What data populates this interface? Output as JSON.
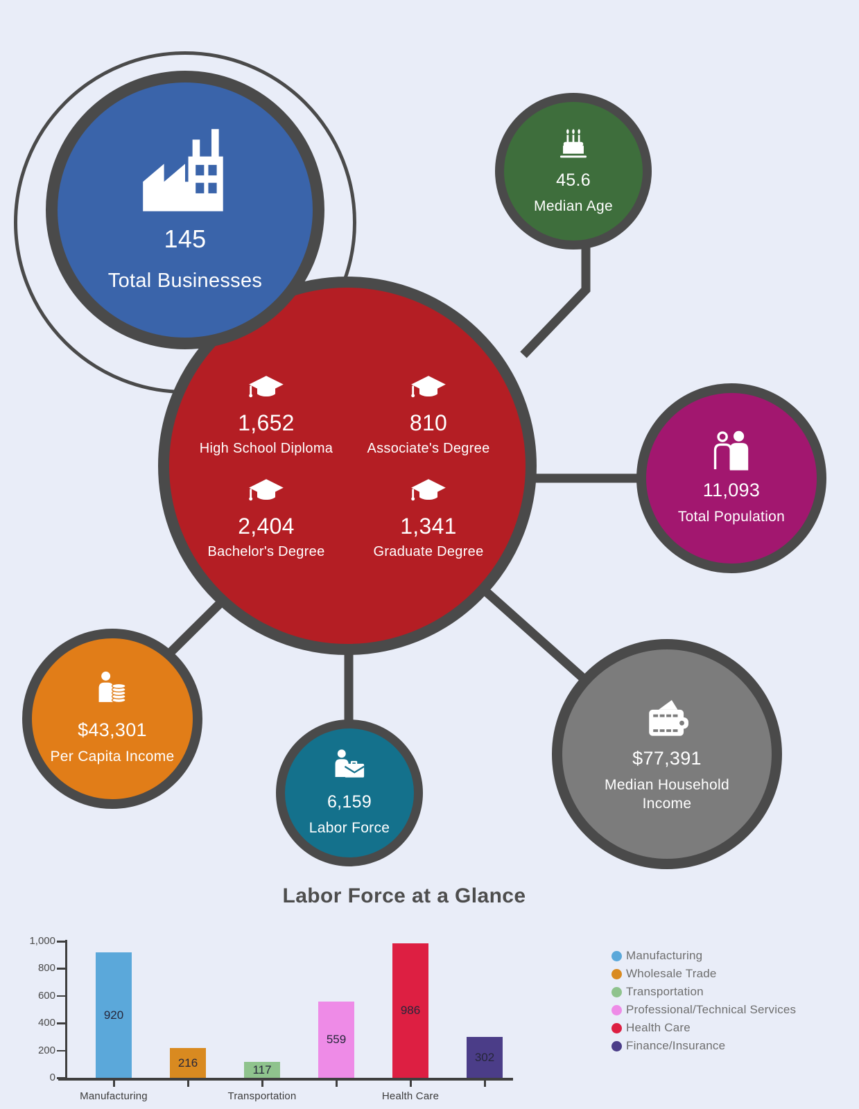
{
  "palette": {
    "background": "#e9edf8",
    "ring": "#4a4a4a",
    "white": "#ffffff"
  },
  "nodes": {
    "total_businesses": {
      "value": "145",
      "label": "Total Businesses",
      "color": "#3a64aa",
      "icon": "factory-icon"
    },
    "median_age": {
      "value": "45.6",
      "label": "Median Age",
      "color": "#3e6e3c",
      "icon": "birthday-cake-icon"
    },
    "education": {
      "color": "#b41e24",
      "icon": "graduation-cap-icon",
      "items": [
        {
          "value": "1,652",
          "label": "High School Diploma"
        },
        {
          "value": "810",
          "label": "Associate's Degree"
        },
        {
          "value": "2,404",
          "label": "Bachelor's Degree"
        },
        {
          "value": "1,341",
          "label": "Graduate Degree"
        }
      ]
    },
    "total_population": {
      "value": "11,093",
      "label": "Total Population",
      "color": "#a2176f",
      "icon": "people-icon"
    },
    "per_capita_income": {
      "value": "$43,301",
      "label": "Per Capita Income",
      "color": "#e17d18",
      "icon": "person-coins-icon"
    },
    "labor_force": {
      "value": "6,159",
      "label": "Labor Force",
      "color": "#14718c",
      "icon": "person-briefcase-icon"
    },
    "median_household_income": {
      "value": "$77,391",
      "label": "Median Household Income",
      "color": "#7c7c7c",
      "icon": "wallet-icon"
    }
  },
  "chart_data": {
    "type": "bar",
    "title": "Labor Force at a Glance",
    "categories": [
      "Manufacturing",
      "Wholesale Trade",
      "Transportation",
      "Professional/Technical Services",
      "Health Care",
      "Finance/Insurance"
    ],
    "values": [
      920,
      216,
      117,
      559,
      986,
      302
    ],
    "colors": [
      "#5ba8da",
      "#d98a20",
      "#8fc38d",
      "#ee8be7",
      "#dd1f42",
      "#4b3d88"
    ],
    "xlabel": "",
    "ylabel": "",
    "ylim": [
      0,
      1000
    ],
    "y_ticks": [
      "0",
      "200",
      "400",
      "600",
      "800",
      "1,000"
    ],
    "x_tick_labels": [
      "Manufacturing",
      "Transportation",
      "Health Care"
    ],
    "x_label_indices": [
      0,
      2,
      4
    ],
    "grid": false,
    "legend_position": "right",
    "value_labels": "inside-bar"
  }
}
